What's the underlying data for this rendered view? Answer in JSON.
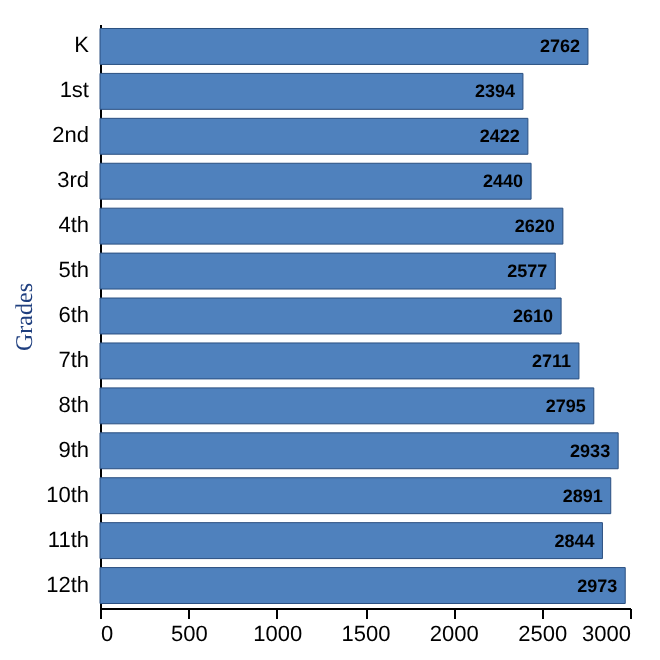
{
  "chart_data": {
    "type": "bar",
    "orientation": "horizontal",
    "ylabel": "Grades",
    "categories": [
      "K",
      "1st",
      "2nd",
      "3rd",
      "4th",
      "5th",
      "6th",
      "7th",
      "8th",
      "9th",
      "10th",
      "11th",
      "12th"
    ],
    "values": [
      2762,
      2394,
      2422,
      2440,
      2620,
      2577,
      2610,
      2711,
      2795,
      2933,
      2891,
      2844,
      2973
    ],
    "color": "#4f81bd",
    "xlim": [
      0,
      3000
    ],
    "xticks": [
      0,
      500,
      1000,
      1500,
      2000,
      2500,
      3000
    ],
    "grid": false,
    "data_labels": true
  }
}
